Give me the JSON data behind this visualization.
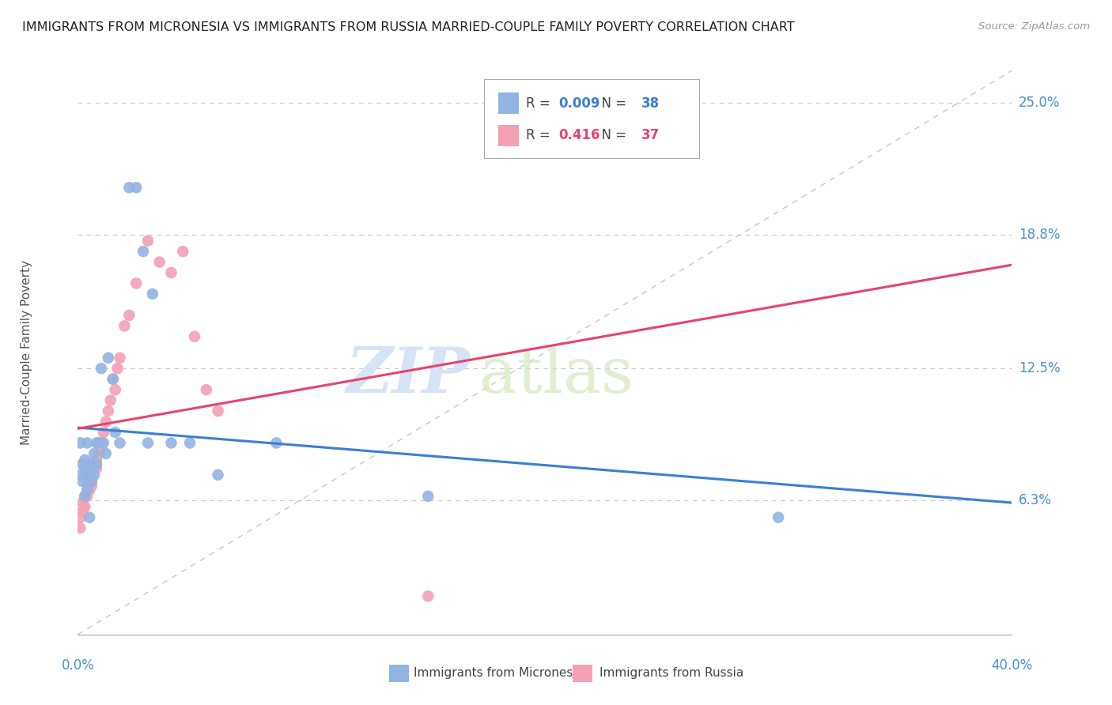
{
  "title": "IMMIGRANTS FROM MICRONESIA VS IMMIGRANTS FROM RUSSIA MARRIED-COUPLE FAMILY POVERTY CORRELATION CHART",
  "source": "Source: ZipAtlas.com",
  "ylabel": "Married-Couple Family Poverty",
  "ytick_labels": [
    "25.0%",
    "18.8%",
    "12.5%",
    "6.3%"
  ],
  "ytick_values": [
    0.25,
    0.188,
    0.125,
    0.063
  ],
  "xlim": [
    0.0,
    0.4
  ],
  "ylim": [
    0.0,
    0.265
  ],
  "micronesia_color": "#92b4e3",
  "russia_color": "#f4a0b5",
  "micronesia_line_color": "#3a7fd5",
  "russia_line_color": "#e8436a",
  "micronesia_R": "0.009",
  "micronesia_N": "38",
  "russia_R": "0.416",
  "russia_N": "37",
  "watermark_zip": "ZIP",
  "watermark_atlas": "atlas",
  "micronesia_x": [
    0.001,
    0.001,
    0.002,
    0.002,
    0.003,
    0.003,
    0.003,
    0.004,
    0.004,
    0.004,
    0.005,
    0.005,
    0.005,
    0.006,
    0.006,
    0.007,
    0.007,
    0.008,
    0.008,
    0.009,
    0.01,
    0.011,
    0.012,
    0.013,
    0.015,
    0.016,
    0.018,
    0.022,
    0.025,
    0.028,
    0.03,
    0.032,
    0.04,
    0.048,
    0.06,
    0.085,
    0.15,
    0.3
  ],
  "micronesia_y": [
    0.09,
    0.075,
    0.08,
    0.072,
    0.078,
    0.082,
    0.065,
    0.075,
    0.068,
    0.09,
    0.08,
    0.075,
    0.055,
    0.078,
    0.072,
    0.085,
    0.075,
    0.09,
    0.08,
    0.09,
    0.125,
    0.09,
    0.085,
    0.13,
    0.12,
    0.095,
    0.09,
    0.21,
    0.21,
    0.18,
    0.09,
    0.16,
    0.09,
    0.09,
    0.075,
    0.09,
    0.065,
    0.055
  ],
  "russia_x": [
    0.001,
    0.001,
    0.002,
    0.002,
    0.003,
    0.003,
    0.004,
    0.004,
    0.005,
    0.005,
    0.006,
    0.006,
    0.007,
    0.008,
    0.008,
    0.009,
    0.01,
    0.01,
    0.011,
    0.012,
    0.013,
    0.014,
    0.015,
    0.016,
    0.017,
    0.018,
    0.02,
    0.022,
    0.025,
    0.03,
    0.035,
    0.04,
    0.045,
    0.05,
    0.055,
    0.06,
    0.15
  ],
  "russia_y": [
    0.055,
    0.05,
    0.062,
    0.058,
    0.065,
    0.06,
    0.07,
    0.065,
    0.072,
    0.068,
    0.075,
    0.07,
    0.08,
    0.082,
    0.078,
    0.085,
    0.09,
    0.088,
    0.095,
    0.1,
    0.105,
    0.11,
    0.12,
    0.115,
    0.125,
    0.13,
    0.145,
    0.15,
    0.165,
    0.185,
    0.175,
    0.17,
    0.18,
    0.14,
    0.115,
    0.105,
    0.018
  ]
}
